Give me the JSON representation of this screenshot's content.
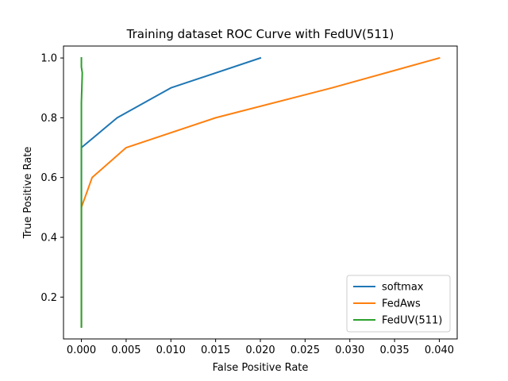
{
  "chart_data": {
    "type": "line",
    "title": "Training dataset ROC Curve with FedUV(511)",
    "xlabel": "False Positive Rate",
    "ylabel": "True Positive Rate",
    "xlim": [
      -0.002,
      0.042
    ],
    "ylim": [
      0.06,
      1.04
    ],
    "xticks": [
      0.0,
      0.005,
      0.01,
      0.015,
      0.02,
      0.025,
      0.03,
      0.035,
      0.04
    ],
    "xtick_labels": [
      "0.000",
      "0.005",
      "0.010",
      "0.015",
      "0.020",
      "0.025",
      "0.030",
      "0.035",
      "0.040"
    ],
    "yticks": [
      0.2,
      0.4,
      0.6,
      0.8,
      1.0
    ],
    "ytick_labels": [
      "0.2",
      "0.4",
      "0.6",
      "0.8",
      "1.0"
    ],
    "grid": false,
    "legend_position": "lower-right",
    "series": [
      {
        "name": "softmax",
        "color": "#1f77b4",
        "x": [
          0.0,
          0.0,
          0.004,
          0.01,
          0.02
        ],
        "y": [
          0.1,
          0.7,
          0.8,
          0.9,
          1.0
        ]
      },
      {
        "name": "FedAws",
        "color": "#ff7f0e",
        "x": [
          0.0,
          0.0,
          0.0012,
          0.005,
          0.015,
          0.028,
          0.04
        ],
        "y": [
          0.1,
          0.5,
          0.6,
          0.7,
          0.8,
          0.9,
          1.0
        ]
      },
      {
        "name": "FedUV(511)",
        "color": "#2ca02c",
        "x": [
          0.0,
          0.0,
          0.0001,
          0.0,
          0.0
        ],
        "y": [
          0.1,
          0.85,
          0.95,
          0.97,
          1.0
        ]
      }
    ]
  }
}
